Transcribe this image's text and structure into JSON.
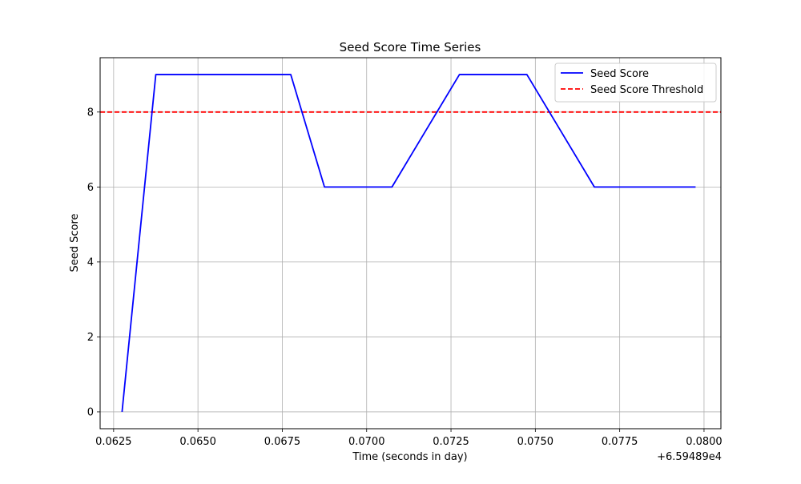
{
  "chart_data": {
    "type": "line",
    "title": "Seed Score Time Series",
    "xlabel": "Time (seconds in day)",
    "ylabel": "Seed Score",
    "x_offset_label": "+6.59489e4",
    "xlim": [
      0.0621,
      0.0805
    ],
    "ylim": [
      -0.45,
      9.45
    ],
    "x_ticks": [
      0.0625,
      0.065,
      0.0675,
      0.07,
      0.0725,
      0.075,
      0.0775,
      0.08
    ],
    "x_tick_labels": [
      "0.0625",
      "0.0650",
      "0.0675",
      "0.0700",
      "0.0725",
      "0.0750",
      "0.0775",
      "0.0800"
    ],
    "y_ticks": [
      0,
      2,
      4,
      6,
      8
    ],
    "y_tick_labels": [
      "0",
      "2",
      "4",
      "6",
      "8"
    ],
    "grid": true,
    "legend_position": "top-right",
    "series": [
      {
        "name": "Seed Score",
        "color": "#0000ff",
        "style": "solid",
        "x": [
          0.06275,
          0.06375,
          0.06475,
          0.06575,
          0.06675,
          0.06775,
          0.06875,
          0.06975,
          0.07075,
          0.07175,
          0.07275,
          0.07375,
          0.07475,
          0.07575,
          0.07675,
          0.07775,
          0.07875,
          0.07975
        ],
        "y": [
          0,
          9,
          9,
          9,
          9,
          9,
          6,
          6,
          6,
          7.5,
          9,
          9,
          9,
          7.5,
          6,
          6,
          6,
          6
        ]
      }
    ],
    "reference_lines": [
      {
        "name": "Seed Score Threshold",
        "orientation": "horizontal",
        "value": 8,
        "color": "#ff0000",
        "style": "dashed"
      }
    ]
  }
}
